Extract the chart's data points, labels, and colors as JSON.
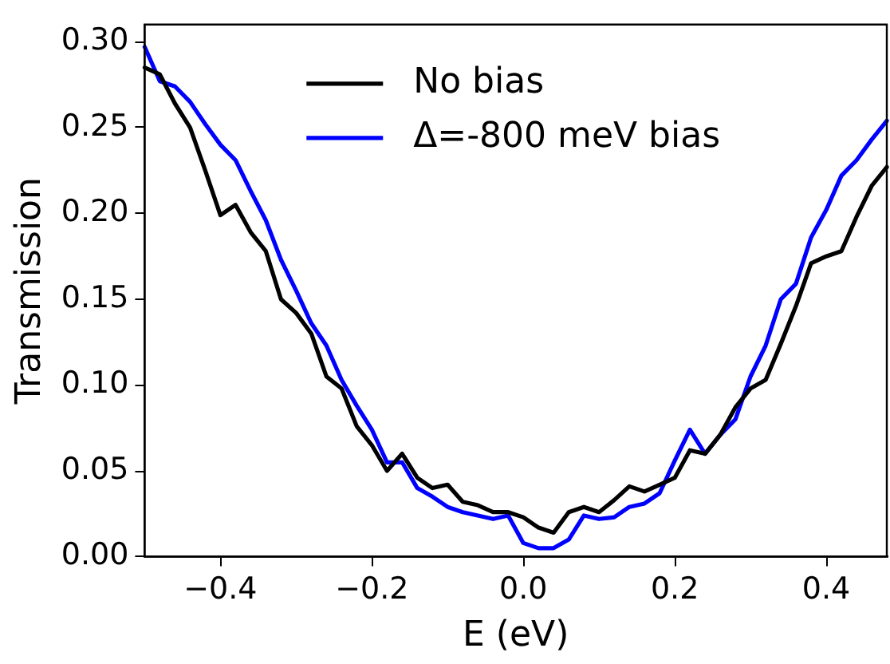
{
  "chart_data": {
    "type": "line",
    "xlabel": "E (eV)",
    "ylabel": "Transmission",
    "x": [
      -0.5,
      -0.48,
      -0.46,
      -0.44,
      -0.42,
      -0.4,
      -0.38,
      -0.36,
      -0.34,
      -0.32,
      -0.3,
      -0.28,
      -0.26,
      -0.24,
      -0.22,
      -0.2,
      -0.18,
      -0.16,
      -0.14,
      -0.12,
      -0.1,
      -0.08,
      -0.06,
      -0.04,
      -0.02,
      0,
      0.02,
      0.04,
      0.06,
      0.08,
      0.1,
      0.12,
      0.14,
      0.16,
      0.18,
      0.2,
      0.22,
      0.24,
      0.26,
      0.28,
      0.3,
      0.32,
      0.34,
      0.36,
      0.38,
      0.4,
      0.42,
      0.44,
      0.46,
      0.48
    ],
    "series": [
      {
        "name": "No bias",
        "color": "#000000",
        "values": [
          0.285,
          0.281,
          0.264,
          0.25,
          0.225,
          0.199,
          0.205,
          0.189,
          0.178,
          0.15,
          0.142,
          0.13,
          0.105,
          0.098,
          0.076,
          0.065,
          0.05,
          0.06,
          0.046,
          0.04,
          0.042,
          0.032,
          0.03,
          0.026,
          0.026,
          0.023,
          0.017,
          0.014,
          0.026,
          0.029,
          0.026,
          0.033,
          0.041,
          0.038,
          0.042,
          0.046,
          0.062,
          0.06,
          0.071,
          0.087,
          0.098,
          0.103,
          0.124,
          0.146,
          0.171,
          0.175,
          0.178,
          0.198,
          0.216,
          0.227
        ]
      },
      {
        "name": "Δ=-800 meV bias",
        "color": "#0000ff",
        "values": [
          0.297,
          0.277,
          0.274,
          0.265,
          0.252,
          0.24,
          0.231,
          0.213,
          0.196,
          0.173,
          0.155,
          0.136,
          0.123,
          0.103,
          0.088,
          0.074,
          0.055,
          0.055,
          0.04,
          0.035,
          0.029,
          0.026,
          0.024,
          0.022,
          0.024,
          0.008,
          0.005,
          0.005,
          0.01,
          0.024,
          0.022,
          0.023,
          0.029,
          0.031,
          0.037,
          0.056,
          0.074,
          0.06,
          0.071,
          0.08,
          0.105,
          0.123,
          0.15,
          0.159,
          0.186,
          0.202,
          0.222,
          0.231,
          0.243,
          0.254
        ]
      }
    ],
    "xlim": [
      -0.5,
      0.48
    ],
    "xticks": [
      {
        "value": -0.4,
        "label": "−0.4"
      },
      {
        "value": -0.2,
        "label": "−0.2"
      },
      {
        "value": 0,
        "label": "0.0"
      },
      {
        "value": 0.2,
        "label": "0.2"
      },
      {
        "value": 0.4,
        "label": "0.4"
      }
    ],
    "ylim": [
      0,
      0.31
    ],
    "yticks": [
      {
        "value": 0,
        "label": "0.00"
      },
      {
        "value": 0.05,
        "label": "0.05"
      },
      {
        "value": 0.1,
        "label": "0.10"
      },
      {
        "value": 0.15,
        "label": "0.15"
      },
      {
        "value": 0.2,
        "label": "0.20"
      },
      {
        "value": 0.25,
        "label": "0.25"
      },
      {
        "value": 0.3,
        "label": "0.30"
      }
    ],
    "grid": false,
    "legend": "top",
    "marker": "none",
    "line_style": "solid"
  }
}
